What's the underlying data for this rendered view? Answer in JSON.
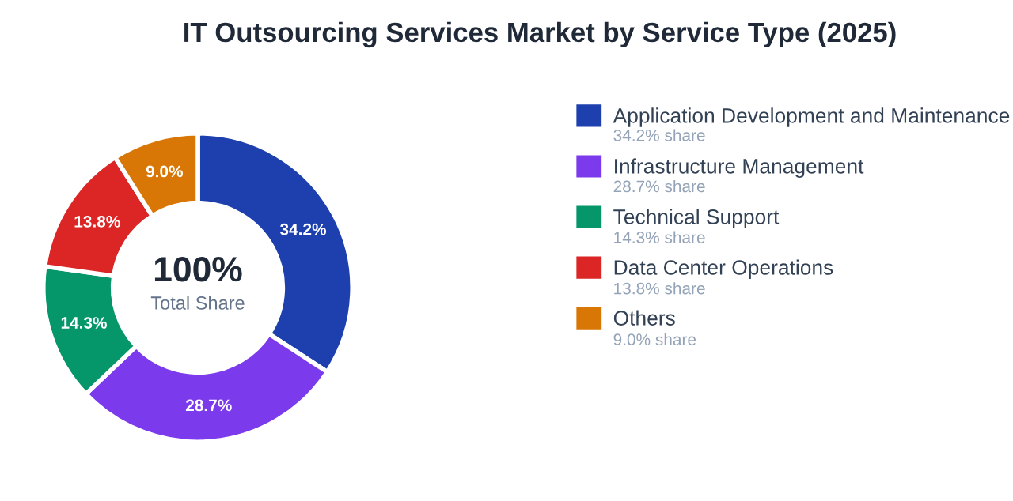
{
  "chart_data": {
    "type": "donut",
    "title": "IT Outsourcing Services Market by Service Type (2025)",
    "categories": [
      "Application Development and Maintenance",
      "Infrastructure Management",
      "Technical Support",
      "Data Center Operations",
      "Others"
    ],
    "values": [
      34.2,
      28.7,
      14.3,
      13.8,
      9.0
    ],
    "value_labels": [
      "34.2%",
      "28.7%",
      "14.3%",
      "13.8%",
      "9.0%"
    ],
    "colors": [
      "#1e40af",
      "#7c3aed",
      "#059669",
      "#dc2626",
      "#d97706"
    ],
    "legend": "right",
    "annotations": [
      "100%",
      "Total Share",
      "34.2% share",
      "28.7% share",
      "14.3% share",
      "13.8% share",
      "9.0% share"
    ]
  }
}
